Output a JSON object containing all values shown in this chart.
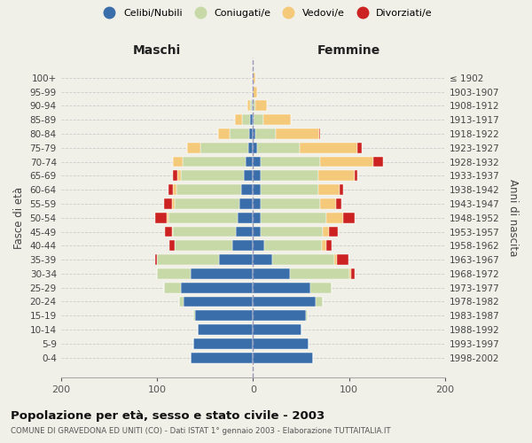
{
  "age_groups": [
    "0-4",
    "5-9",
    "10-14",
    "15-19",
    "20-24",
    "25-29",
    "30-34",
    "35-39",
    "40-44",
    "45-49",
    "50-54",
    "55-59",
    "60-64",
    "65-69",
    "70-74",
    "75-79",
    "80-84",
    "85-89",
    "90-94",
    "95-99",
    "100+"
  ],
  "birth_years": [
    "1998-2002",
    "1993-1997",
    "1988-1992",
    "1983-1987",
    "1978-1982",
    "1973-1977",
    "1968-1972",
    "1963-1967",
    "1958-1962",
    "1953-1957",
    "1948-1952",
    "1943-1947",
    "1938-1942",
    "1933-1937",
    "1928-1932",
    "1923-1927",
    "1918-1922",
    "1913-1917",
    "1908-1912",
    "1903-1907",
    "≤ 1902"
  ],
  "colors": {
    "celibi": "#3a6eaa",
    "coniugati": "#c8d9a8",
    "vedovi": "#f5c97a",
    "divorziati": "#cc2222"
  },
  "maschi_celibi": [
    65,
    62,
    58,
    60,
    72,
    75,
    65,
    35,
    22,
    18,
    16,
    14,
    12,
    10,
    8,
    5,
    4,
    3,
    1,
    1,
    1
  ],
  "maschi_coniugati": [
    0,
    0,
    0,
    2,
    5,
    18,
    35,
    65,
    60,
    65,
    72,
    68,
    68,
    65,
    65,
    50,
    20,
    8,
    2,
    0,
    0
  ],
  "maschi_vedovi": [
    0,
    0,
    0,
    0,
    0,
    0,
    0,
    0,
    0,
    1,
    2,
    2,
    3,
    4,
    10,
    14,
    12,
    8,
    3,
    0,
    0
  ],
  "maschi_divorziati": [
    0,
    0,
    0,
    0,
    0,
    0,
    0,
    2,
    5,
    8,
    12,
    9,
    5,
    4,
    0,
    0,
    0,
    0,
    0,
    0,
    0
  ],
  "femmine_celibi": [
    62,
    58,
    50,
    55,
    65,
    60,
    38,
    20,
    12,
    8,
    8,
    8,
    8,
    8,
    8,
    4,
    2,
    1,
    0,
    0,
    0
  ],
  "femmine_coniugati": [
    0,
    0,
    0,
    2,
    8,
    22,
    62,
    65,
    60,
    65,
    68,
    62,
    60,
    60,
    62,
    45,
    22,
    10,
    2,
    0,
    0
  ],
  "femmine_vedovi": [
    0,
    0,
    0,
    0,
    0,
    0,
    2,
    2,
    4,
    6,
    18,
    16,
    22,
    38,
    55,
    60,
    45,
    28,
    12,
    4,
    2
  ],
  "femmine_divorziati": [
    0,
    0,
    0,
    0,
    0,
    0,
    4,
    12,
    6,
    9,
    12,
    6,
    4,
    3,
    10,
    4,
    1,
    0,
    0,
    0,
    0
  ],
  "xlim": 200,
  "title": "Popolazione per età, sesso e stato civile - 2003",
  "subtitle": "COMUNE DI GRAVEDONA ED UNITI (CO) - Dati ISTAT 1° gennaio 2003 - Elaborazione TUTTAITALIA.IT",
  "ylabel_left": "Fasce di età",
  "ylabel_right": "Anni di nascita",
  "label_maschi": "Maschi",
  "label_femmine": "Femmine",
  "legend_labels": [
    "Celibi/Nubili",
    "Coniugati/e",
    "Vedovi/e",
    "Divorziati/e"
  ],
  "bg_color": "#f0f0e8",
  "bar_height": 0.75
}
